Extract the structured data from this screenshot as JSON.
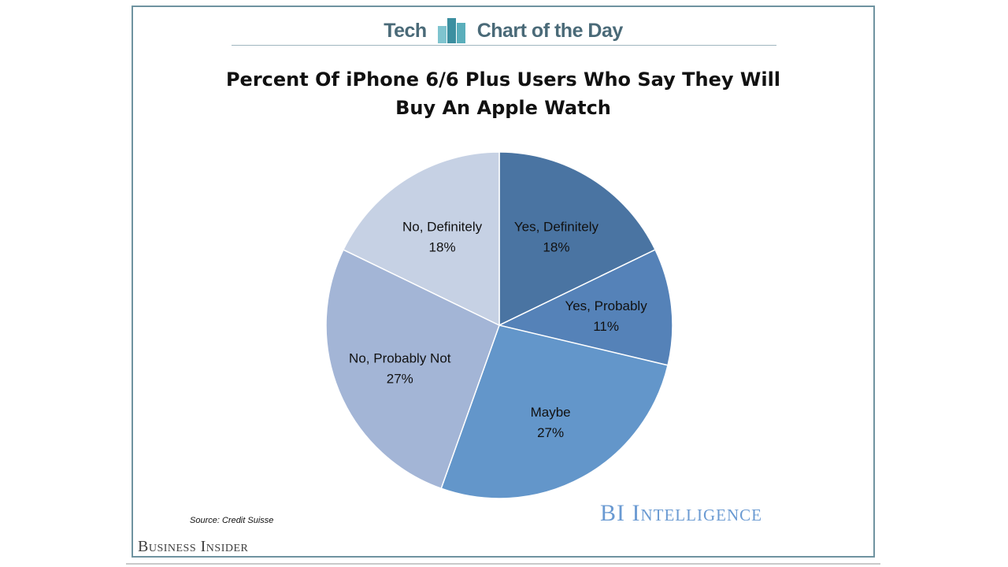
{
  "header": {
    "left_word": "Tech",
    "right_word": "Chart of the Day"
  },
  "chart_data": {
    "type": "pie",
    "title_lines": [
      "Percent Of iPhone 6/6 Plus Users Who Say They Will",
      "Buy An Apple Watch"
    ],
    "slices": [
      {
        "label": "Yes, Definitely",
        "value": 18,
        "value_label": "18%",
        "color": "#4a74a2"
      },
      {
        "label": "Yes, Probably",
        "value": 11,
        "value_label": "11%",
        "color": "#5582b8"
      },
      {
        "label": "Maybe",
        "value": 27,
        "value_label": "27%",
        "color": "#6396ca"
      },
      {
        "label": "No, Probably Not",
        "value": 27,
        "value_label": "27%",
        "color": "#a3b5d6"
      },
      {
        "label": "No, Definitely",
        "value": 18,
        "value_label": "18%",
        "color": "#c6d1e4"
      }
    ],
    "start": "12 o'clock",
    "direction": "clockwise"
  },
  "footer": {
    "source": "Source: Credit Suisse",
    "brand": "Business Insider",
    "intelligence": "BI Intelligence"
  },
  "colors": {
    "frame": "#6f93a0",
    "header_text": "#4a6a78",
    "intelligence": "#6a9ad2"
  }
}
